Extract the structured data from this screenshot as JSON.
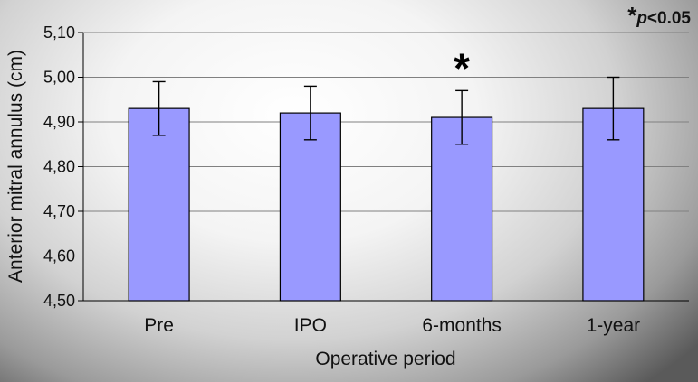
{
  "chart_data": {
    "type": "bar",
    "categories": [
      "Pre",
      "IPO",
      "6-months",
      "1-year"
    ],
    "values": [
      4.93,
      4.92,
      4.91,
      4.93
    ],
    "errors": [
      0.06,
      0.06,
      0.06,
      0.07
    ],
    "xlabel": "Operative period",
    "ylabel": "Anterior mitral annulus (cm)",
    "ylim": [
      4.5,
      5.1
    ],
    "yticks": [
      "4,50",
      "4,60",
      "4,70",
      "4,80",
      "4,90",
      "5,00",
      "5,10"
    ],
    "grid": true,
    "bar_color": "#9999ff",
    "significance": {
      "category_index": 2,
      "marker": "*"
    },
    "annotation": {
      "star": "*",
      "p_text": "p",
      "rest": "<0.05"
    }
  }
}
